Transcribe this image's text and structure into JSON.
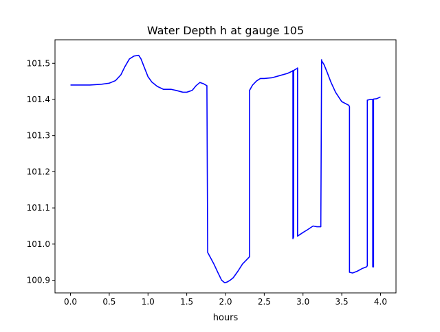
{
  "chart_data": {
    "type": "line",
    "title": "Water Depth h at gauge 105",
    "xlabel": "hours",
    "ylabel": "",
    "xlim": [
      -0.2,
      4.2
    ],
    "ylim": [
      100.865,
      101.565
    ],
    "xticks": [
      0.0,
      0.5,
      1.0,
      1.5,
      2.0,
      2.5,
      3.0,
      3.5,
      4.0
    ],
    "xtick_labels": [
      "0.0",
      "0.5",
      "1.0",
      "1.5",
      "2.0",
      "2.5",
      "3.0",
      "3.5",
      "4.0"
    ],
    "yticks": [
      100.9,
      101.0,
      101.1,
      101.2,
      101.3,
      101.4,
      101.5
    ],
    "ytick_labels": [
      "100.9",
      "101.0",
      "101.1",
      "101.2",
      "101.3",
      "101.4",
      "101.5"
    ],
    "grid": false,
    "legend": "none",
    "series": [
      {
        "color": "#0000ff",
        "x": [
          0.0,
          0.25,
          0.4,
          0.5,
          0.58,
          0.65,
          0.7,
          0.76,
          0.82,
          0.88,
          0.91,
          0.95,
          1.0,
          1.05,
          1.12,
          1.2,
          1.3,
          1.38,
          1.45,
          1.5,
          1.57,
          1.62,
          1.67,
          1.72,
          1.76,
          1.77,
          1.8,
          1.85,
          1.9,
          1.95,
          1.99,
          2.02,
          2.06,
          2.1,
          2.16,
          2.22,
          2.31,
          2.31,
          2.35,
          2.4,
          2.45,
          2.5,
          2.6,
          2.7,
          2.8,
          2.86,
          2.87,
          2.87,
          2.88,
          2.88,
          2.9,
          2.92,
          2.93,
          2.93,
          2.95,
          3.0,
          3.06,
          3.13,
          3.18,
          3.23,
          3.24,
          3.24,
          3.27,
          3.31,
          3.36,
          3.42,
          3.5,
          3.59,
          3.6,
          3.6,
          3.64,
          3.7,
          3.76,
          3.82,
          3.83,
          3.83,
          3.87,
          3.9,
          3.9,
          3.91,
          3.91,
          3.95,
          4.0
        ],
        "y": [
          101.44,
          101.44,
          101.442,
          101.445,
          101.452,
          101.468,
          101.49,
          101.512,
          101.52,
          101.522,
          101.512,
          101.49,
          101.463,
          101.448,
          101.436,
          101.428,
          101.428,
          101.424,
          101.42,
          101.42,
          101.425,
          101.438,
          101.447,
          101.443,
          101.438,
          100.977,
          100.965,
          100.945,
          100.922,
          100.9,
          100.893,
          100.895,
          100.9,
          100.907,
          100.925,
          100.945,
          100.965,
          101.425,
          101.44,
          101.451,
          101.458,
          101.458,
          101.46,
          101.466,
          101.472,
          101.478,
          101.48,
          101.015,
          101.02,
          101.48,
          101.483,
          101.485,
          101.487,
          101.022,
          101.025,
          101.032,
          101.04,
          101.05,
          101.048,
          101.048,
          101.51,
          101.507,
          101.497,
          101.476,
          101.448,
          101.42,
          101.394,
          101.384,
          101.38,
          100.922,
          100.92,
          100.925,
          100.932,
          100.937,
          100.94,
          101.398,
          101.4,
          101.4,
          100.937,
          100.937,
          101.401,
          101.402,
          101.407
        ]
      }
    ]
  }
}
